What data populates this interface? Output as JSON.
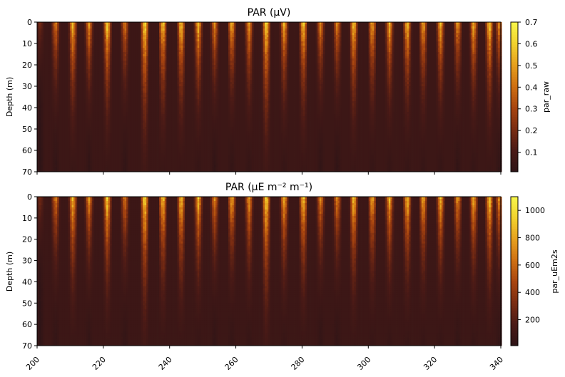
{
  "chart_data": [
    {
      "type": "heatmap",
      "title": "PAR (μV)",
      "ylabel": "Depth (m)",
      "xlabel": "",
      "xlim": [
        200,
        340
      ],
      "ylim": [
        70,
        0
      ],
      "y_inverted": true,
      "yticks": [
        0,
        10,
        20,
        30,
        40,
        50,
        60,
        70
      ],
      "xticks": [
        200,
        220,
        240,
        260,
        280,
        300,
        320,
        340
      ],
      "xticklabels_shown": false,
      "colorbar": {
        "label": "par_raw",
        "range": [
          0.01,
          0.7
        ],
        "ticks": [
          0.1,
          0.2,
          0.3,
          0.4,
          0.5,
          0.6,
          0.7
        ],
        "colormap": [
          "#2e1416",
          "#4a1a16",
          "#7a2c12",
          "#a84510",
          "#cf7012",
          "#e6a01e",
          "#f2d22e",
          "#f7f74a"
        ]
      },
      "profiles": [
        {
          "x": 200.9,
          "surface": 0.16,
          "decay": 16
        },
        {
          "x": 205.6,
          "surface": 0.43,
          "decay": 20
        },
        {
          "x": 210.8,
          "surface": 0.58,
          "decay": 24
        },
        {
          "x": 215.7,
          "surface": 0.48,
          "decay": 20
        },
        {
          "x": 221.2,
          "surface": 0.62,
          "decay": 24
        },
        {
          "x": 226.5,
          "surface": 0.43,
          "decay": 20
        },
        {
          "x": 232.5,
          "surface": 0.7,
          "decay": 28
        },
        {
          "x": 238.0,
          "surface": 0.62,
          "decay": 24
        },
        {
          "x": 243.5,
          "surface": 0.62,
          "decay": 24
        },
        {
          "x": 248.7,
          "surface": 0.58,
          "decay": 22
        },
        {
          "x": 253.6,
          "surface": 0.45,
          "decay": 20
        },
        {
          "x": 258.8,
          "surface": 0.55,
          "decay": 20
        },
        {
          "x": 264.0,
          "surface": 0.5,
          "decay": 22
        },
        {
          "x": 269.2,
          "surface": 0.68,
          "decay": 28
        },
        {
          "x": 274.6,
          "surface": 0.55,
          "decay": 22
        },
        {
          "x": 280.4,
          "surface": 0.62,
          "decay": 24
        },
        {
          "x": 285.6,
          "surface": 0.45,
          "decay": 20
        },
        {
          "x": 290.6,
          "surface": 0.45,
          "decay": 20
        },
        {
          "x": 295.6,
          "surface": 0.62,
          "decay": 24
        },
        {
          "x": 301.2,
          "surface": 0.55,
          "decay": 22
        },
        {
          "x": 306.4,
          "surface": 0.55,
          "decay": 22
        },
        {
          "x": 311.8,
          "surface": 0.6,
          "decay": 22
        },
        {
          "x": 316.6,
          "surface": 0.55,
          "decay": 22
        },
        {
          "x": 321.8,
          "surface": 0.55,
          "decay": 22
        },
        {
          "x": 327.0,
          "surface": 0.5,
          "decay": 20
        },
        {
          "x": 331.8,
          "surface": 0.55,
          "decay": 22
        },
        {
          "x": 336.6,
          "surface": 0.62,
          "decay": 24
        },
        {
          "x": 339.5,
          "surface": 0.45,
          "decay": 20
        }
      ]
    },
    {
      "type": "heatmap",
      "title": "PAR (μE m⁻² m⁻¹)",
      "ylabel": "Depth (m)",
      "xlabel": "",
      "xlim": [
        200,
        340
      ],
      "ylim": [
        70,
        0
      ],
      "y_inverted": true,
      "yticks": [
        0,
        10,
        20,
        30,
        40,
        50,
        60,
        70
      ],
      "xticks": [
        200,
        220,
        240,
        260,
        280,
        300,
        320,
        340
      ],
      "xticklabels": [
        "200",
        "220",
        "240",
        "260",
        "280",
        "300",
        "320",
        "340"
      ],
      "colorbar": {
        "label": "par_uEm2s",
        "range": [
          10,
          1100
        ],
        "ticks": [
          200,
          400,
          600,
          800,
          1000
        ],
        "colormap": [
          "#2e1416",
          "#4a1a16",
          "#7a2c12",
          "#a84510",
          "#cf7012",
          "#e6a01e",
          "#f2d22e",
          "#f7f74a"
        ]
      },
      "profiles": [
        {
          "x": 200.9,
          "surface": 250,
          "decay": 16
        },
        {
          "x": 205.6,
          "surface": 680,
          "decay": 20
        },
        {
          "x": 210.8,
          "surface": 910,
          "decay": 24
        },
        {
          "x": 215.7,
          "surface": 750,
          "decay": 20
        },
        {
          "x": 221.2,
          "surface": 975,
          "decay": 24
        },
        {
          "x": 226.5,
          "surface": 680,
          "decay": 20
        },
        {
          "x": 232.5,
          "surface": 1100,
          "decay": 28
        },
        {
          "x": 238.0,
          "surface": 975,
          "decay": 24
        },
        {
          "x": 243.5,
          "surface": 975,
          "decay": 24
        },
        {
          "x": 248.7,
          "surface": 910,
          "decay": 22
        },
        {
          "x": 253.6,
          "surface": 710,
          "decay": 20
        },
        {
          "x": 258.8,
          "surface": 865,
          "decay": 20
        },
        {
          "x": 264.0,
          "surface": 785,
          "decay": 22
        },
        {
          "x": 269.2,
          "surface": 1070,
          "decay": 28
        },
        {
          "x": 274.6,
          "surface": 865,
          "decay": 22
        },
        {
          "x": 280.4,
          "surface": 975,
          "decay": 24
        },
        {
          "x": 285.6,
          "surface": 710,
          "decay": 20
        },
        {
          "x": 290.6,
          "surface": 710,
          "decay": 20
        },
        {
          "x": 295.6,
          "surface": 975,
          "decay": 24
        },
        {
          "x": 301.2,
          "surface": 865,
          "decay": 22
        },
        {
          "x": 306.4,
          "surface": 865,
          "decay": 22
        },
        {
          "x": 311.8,
          "surface": 945,
          "decay": 22
        },
        {
          "x": 316.6,
          "surface": 865,
          "decay": 22
        },
        {
          "x": 321.8,
          "surface": 865,
          "decay": 22
        },
        {
          "x": 327.0,
          "surface": 785,
          "decay": 20
        },
        {
          "x": 331.8,
          "surface": 865,
          "decay": 22
        },
        {
          "x": 336.6,
          "surface": 975,
          "decay": 24
        },
        {
          "x": 339.5,
          "surface": 710,
          "decay": 20
        }
      ]
    }
  ]
}
